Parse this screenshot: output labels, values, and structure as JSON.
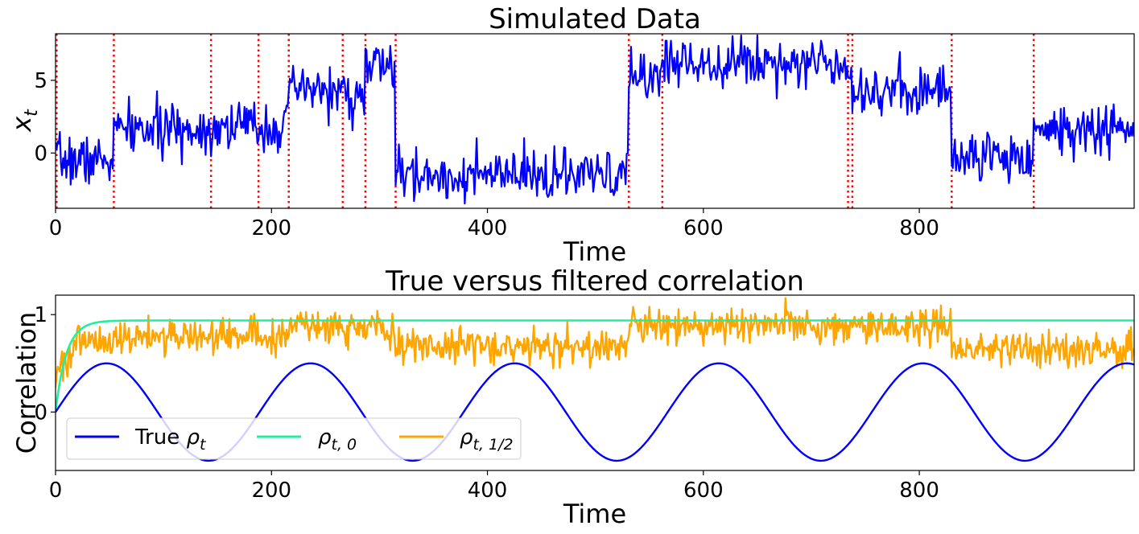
{
  "chart_data": [
    {
      "type": "line",
      "title": "Simulated Data",
      "xlabel": "Time",
      "ylabel": "x_t",
      "ylabel_main": "x",
      "ylabel_sub": "t",
      "xlim": [
        0,
        999
      ],
      "ylim": [
        -3.8,
        8.2
      ],
      "xticks": [
        0,
        200,
        400,
        600,
        800
      ],
      "xtick_labels": [
        "0",
        "200",
        "400",
        "600",
        "800"
      ],
      "yticks": [
        0,
        5
      ],
      "ytick_labels": [
        "0",
        "5"
      ],
      "noise_seed": 7,
      "series": [
        {
          "name": "x_t",
          "color": "#0000ff",
          "style": "solid",
          "noise_sd": 0.85,
          "regimes": [
            {
              "start": 0,
              "end": 54,
              "mean": -0.5
            },
            {
              "start": 54,
              "end": 144,
              "mean": 1.6
            },
            {
              "start": 144,
              "end": 188,
              "mean": 1.9
            },
            {
              "start": 188,
              "end": 216,
              "mean": 1.8
            },
            {
              "start": 216,
              "end": 266,
              "mean": 4.3
            },
            {
              "start": 266,
              "end": 287,
              "mean": 3.8
            },
            {
              "start": 287,
              "end": 315,
              "mean": 6.0
            },
            {
              "start": 315,
              "end": 531,
              "mean": -1.6
            },
            {
              "start": 531,
              "end": 562,
              "mean": 5.3
            },
            {
              "start": 562,
              "end": 734,
              "mean": 6.3
            },
            {
              "start": 734,
              "end": 738,
              "mean": 5.5
            },
            {
              "start": 738,
              "end": 830,
              "mean": 4.3
            },
            {
              "start": 830,
              "end": 906,
              "mean": -0.2
            },
            {
              "start": 906,
              "end": 999,
              "mean": 1.6
            }
          ]
        }
      ],
      "vlines": {
        "color": "#ff0000",
        "style": "dotted",
        "x": [
          1,
          54,
          144,
          188,
          216,
          266,
          287,
          315,
          531,
          562,
          734,
          738,
          830,
          906
        ]
      }
    },
    {
      "type": "line",
      "title": "True versus filtered correlation",
      "xlabel": "Time",
      "ylabel": "Correlation",
      "xlim": [
        0,
        999
      ],
      "ylim": [
        -0.6,
        1.2
      ],
      "xticks": [
        0,
        200,
        400,
        600,
        800
      ],
      "xtick_labels": [
        "0",
        "200",
        "400",
        "600",
        "800"
      ],
      "yticks": [
        0,
        1
      ],
      "ytick_labels": [
        "0",
        "1"
      ],
      "series": [
        {
          "name": "True ρ_t",
          "label_prefix": "True ",
          "label_main": "ρ",
          "label_sub": "t",
          "color": "#0000ff",
          "formula": "0.5*sin(2*pi*t/189)",
          "amplitude": 0.5,
          "period": 189
        },
        {
          "name": "ρ_{t,0}",
          "label_prefix": "",
          "label_main": "ρ",
          "label_sub": "t, 0",
          "color": "#1ef0a0",
          "formula": "0.94*(1-exp(-t/10))",
          "plateau": 0.94,
          "time_constant": 10
        },
        {
          "name": "ρ_{t,1/2}",
          "label_prefix": "",
          "label_main": "ρ",
          "label_sub": "t, 1/2",
          "color": "#ffa500",
          "noise_sd": 0.09,
          "segments": [
            {
              "start": 0,
              "end": 54,
              "mean": 0.7
            },
            {
              "start": 54,
              "end": 216,
              "mean": 0.78
            },
            {
              "start": 216,
              "end": 315,
              "mean": 0.88
            },
            {
              "start": 315,
              "end": 531,
              "mean": 0.68
            },
            {
              "start": 531,
              "end": 830,
              "mean": 0.88
            },
            {
              "start": 830,
              "end": 999,
              "mean": 0.65
            }
          ]
        }
      ],
      "legend": {
        "location": "lower-left",
        "columns": 3
      }
    }
  ]
}
